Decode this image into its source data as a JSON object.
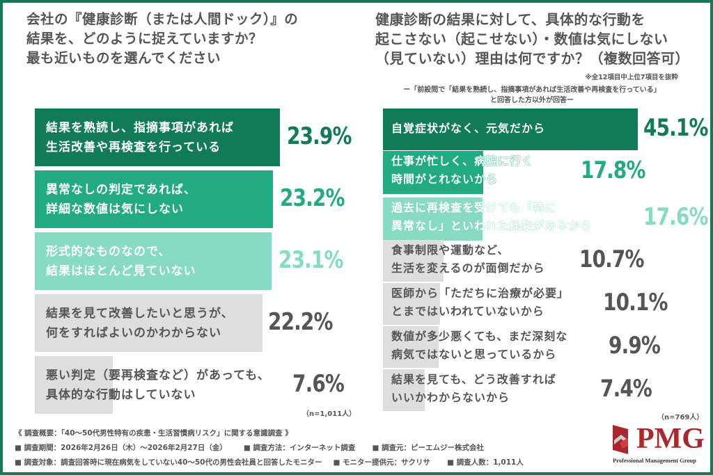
{
  "left": {
    "title_lines": [
      "会社の『健康診断（または人間ドック）』の",
      "結果を、どのように捉えていますか？",
      "最も近いものを選んでください"
    ],
    "sample_note": "（n=1,011人）"
  },
  "right": {
    "title_lines": [
      "健康診断の結果に対して、具体的な行動を",
      "起こさない（起こせない）・数値は気にしない",
      "（見ていない）理由は何ですか？（複数回答可）"
    ],
    "note": "※全12項目中上位7項目を抜粋",
    "subtitle_lines": [
      "ー「前設問で「結果を熟読し、指摘事項があれば生活改善や再検査を行っている」",
      "と回答した方以外が回答ー"
    ],
    "sample_note": "（n=769人）"
  },
  "chart_data": [
    {
      "type": "bar",
      "orientation": "horizontal",
      "title": "会社の『健康診断（または人間ドック）』の結果を、どのように捉えていますか？最も近いものを選んでください",
      "categories": [
        "結果を熟読し、指摘事項があれば生活改善や再検査を行っている",
        "異常なしの判定であれば、詳細な数値は気にしない",
        "形式的なものなので、結果はほとんど見ていない",
        "結果を見て改善したいと思うが、何をすればよいのかわからない",
        "悪い判定（要再検査など）があっても、具体的な行動はしていない"
      ],
      "label_lines": [
        [
          "結果を熟読し、指摘事項があれば",
          "生活改善や再検査を行っている"
        ],
        [
          "異常なしの判定であれば、",
          "詳細な数値は気にしない"
        ],
        [
          "形式的なものなので、",
          "結果はほとんど見ていない"
        ],
        [
          "結果を見て改善したいと思うが、",
          "何をすればよいのかわからない"
        ],
        [
          "悪い判定（要再検査など）があっても、",
          "具体的な行動はしていない"
        ]
      ],
      "values": [
        23.9,
        23.2,
        23.1,
        22.2,
        7.6
      ],
      "value_labels": [
        "23.9%",
        "23.2%",
        "23.1%",
        "22.2%",
        "7.6%"
      ],
      "colors": [
        "#117a57",
        "#22ab82",
        "#86dbc2",
        "#dedede",
        "#dedede"
      ],
      "value_colors": [
        "#117a57",
        "#22ab82",
        "#86dbc2",
        "#555555",
        "#555555"
      ],
      "unit": "%",
      "n": "n=1,011人",
      "grid": false,
      "legend": "none"
    },
    {
      "type": "bar",
      "orientation": "horizontal",
      "title": "健康診断の結果に対して、具体的な行動を起こさない（起こせない）・数値は気にしない（見ていない）理由は何ですか？（複数回答可）",
      "subtitle": "※全12項目中上位7項目を抜粋",
      "categories": [
        "自覚症状がなく、元気だから",
        "仕事が忙しく、病院に行く時間がとれないから",
        "過去に再検査を受けても「特に異常なし」といわれた経験があるから",
        "食事制限や運動など、生活を変えるのが面倒だから",
        "医師から「ただちに治療が必要」とまではいわれていないから",
        "数値が多少悪くても、まだ深刻な病気ではないと思っているから",
        "結果を見ても、どう改善すればいいかわからないから"
      ],
      "label_lines": [
        [
          "自覚症状がなく、元気だから"
        ],
        [
          "仕事が忙しく、病院に行く",
          "時間がとれないから"
        ],
        [
          "過去に再検査を受けても「特に",
          "異常なし」といわれた経験があるから"
        ],
        [
          "食事制限や運動など、",
          "生活を変えるのが面倒だから"
        ],
        [
          "医師から「ただちに治療が必要」",
          "とまではいわれていないから"
        ],
        [
          "数値が多少悪くても、まだ深刻な",
          "病気ではないと思っているから"
        ],
        [
          "結果を見ても、どう改善すれば",
          "いいかわからないから"
        ]
      ],
      "values": [
        45.1,
        17.8,
        17.6,
        10.7,
        10.1,
        9.9,
        7.4
      ],
      "value_labels": [
        "45.1%",
        "17.8%",
        "17.6%",
        "10.7%",
        "10.1%",
        "9.9%",
        "7.4%"
      ],
      "colors": [
        "#117a57",
        "#22ab82",
        "#86dbc2",
        "#dedede",
        "#dedede",
        "#dedede",
        "#dedede"
      ],
      "value_colors": [
        "#117a57",
        "#22ab82",
        "#86dbc2",
        "#555555",
        "#555555",
        "#555555",
        "#555555"
      ],
      "unit": "%",
      "n": "n=769人",
      "grid": false,
      "legend": "none"
    }
  ],
  "footer": {
    "survey_title": "《 調査概要：「40〜50代男性特有の疾患・生活習慣病リスク」に関する意識調査 》",
    "period": "■ 調査期間：2026年2月26日（木）〜2026年2月27日（金）",
    "method": "■ 調査方法：インターネット調査",
    "organizer": "■ 調査元：ピーエムジー株式会社",
    "target": "■ 調査対象：調査回答時に現在病気をしていない40〜50代の男性会社員と回答したモニター",
    "provider": "■ モニター提供元：サクリサ",
    "count": "■ 調査人数：1,011人"
  },
  "logo": {
    "text": "PMG",
    "subtitle": "Professional Management Group",
    "color": "#a8282e"
  },
  "theme": {
    "frame": "#117a57",
    "dark_green": "#117a57",
    "mid_green": "#22ab82",
    "light_green": "#86dbc2",
    "gray": "#dedede",
    "text": "#555555"
  }
}
